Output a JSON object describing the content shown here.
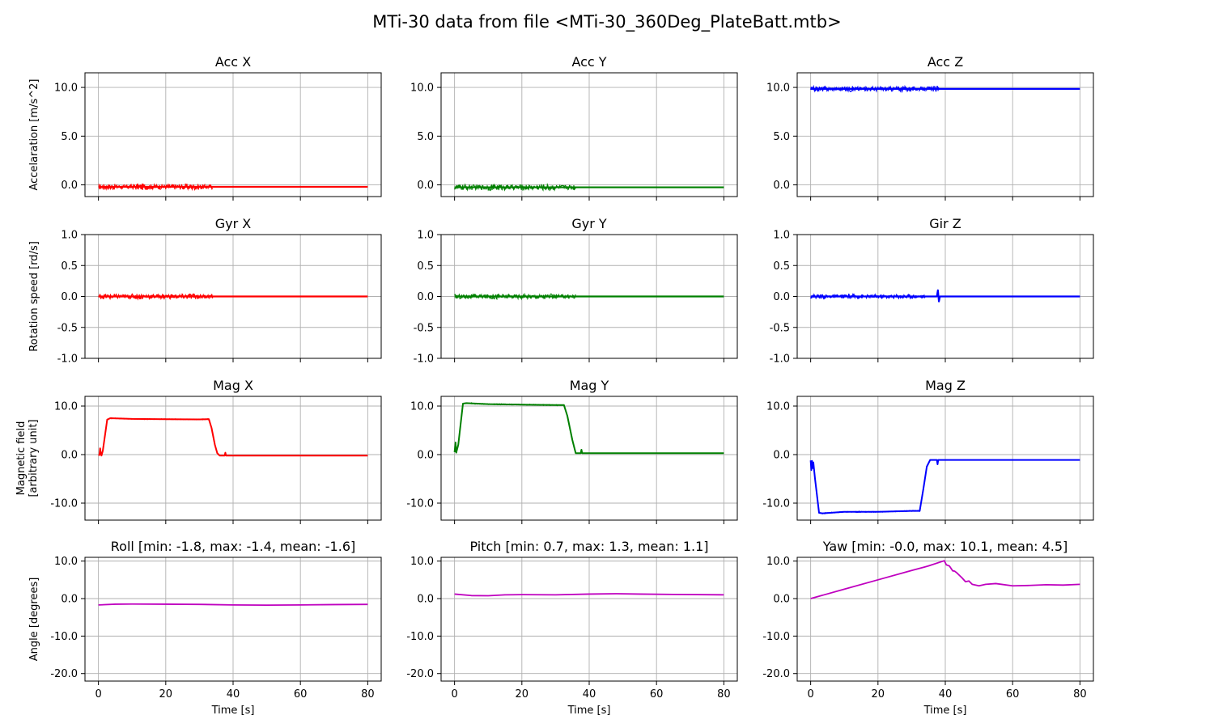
{
  "figure": {
    "title": "MTi-30 data from file <MTi-30_360Deg_PlateBatt.mtb>"
  },
  "chart_data": [
    {
      "id": "acc-x",
      "type": "line",
      "row": 0,
      "col": 0,
      "title": "Acc X",
      "xlabel": "",
      "ylabel": "Accelaration [m/s^2]",
      "xlim": [
        -4,
        84
      ],
      "ylim": [
        -1.2,
        11.5
      ],
      "xticks": [
        0,
        20,
        40,
        60,
        80
      ],
      "xtick_labels": false,
      "yticks": [
        0,
        5,
        10
      ],
      "ytick_labels": [
        "0.0",
        "5.0",
        "10.0"
      ],
      "grid": true,
      "color": "#ff0000",
      "line_width": 2.2,
      "series": [
        {
          "x": [
            0,
            80
          ],
          "y": [
            -0.2,
            -0.2
          ]
        }
      ],
      "noise": [
        {
          "from": 0,
          "to": 34,
          "base": -0.2,
          "amp": 0.35
        }
      ]
    },
    {
      "id": "acc-y",
      "type": "line",
      "row": 0,
      "col": 1,
      "title": "Acc Y",
      "xlabel": "",
      "ylabel": "",
      "xlim": [
        -4,
        84
      ],
      "ylim": [
        -1.2,
        11.5
      ],
      "xticks": [
        0,
        20,
        40,
        60,
        80
      ],
      "xtick_labels": false,
      "yticks": [
        0,
        5,
        10
      ],
      "ytick_labels": [
        "0.0",
        "5.0",
        "10.0"
      ],
      "grid": true,
      "color": "#008000",
      "line_width": 2.2,
      "series": [
        {
          "x": [
            0,
            80
          ],
          "y": [
            -0.25,
            -0.25
          ]
        }
      ],
      "noise": [
        {
          "from": 0,
          "to": 36,
          "base": -0.25,
          "amp": 0.35
        }
      ]
    },
    {
      "id": "acc-z",
      "type": "line",
      "row": 0,
      "col": 2,
      "title": "Acc Z",
      "xlabel": "",
      "ylabel": "",
      "xlim": [
        -4,
        84
      ],
      "ylim": [
        -1.2,
        11.5
      ],
      "xticks": [
        0,
        20,
        40,
        60,
        80
      ],
      "xtick_labels": false,
      "yticks": [
        0,
        5,
        10
      ],
      "ytick_labels": [
        "0.0",
        "5.0",
        "10.0"
      ],
      "grid": true,
      "color": "#0000ff",
      "line_width": 2.2,
      "series": [
        {
          "x": [
            0,
            80
          ],
          "y": [
            9.85,
            9.85
          ]
        }
      ],
      "noise": [
        {
          "from": 0,
          "to": 38,
          "base": 9.85,
          "amp": 0.3
        }
      ]
    },
    {
      "id": "gyr-x",
      "type": "line",
      "row": 1,
      "col": 0,
      "title": "Gyr X",
      "xlabel": "",
      "ylabel": "Rotation speed [rd/s]",
      "xlim": [
        -4,
        84
      ],
      "ylim": [
        -1.0,
        1.0
      ],
      "xticks": [
        0,
        20,
        40,
        60,
        80
      ],
      "xtick_labels": false,
      "yticks": [
        -1,
        -0.5,
        0,
        0.5,
        1
      ],
      "ytick_labels": [
        "-1.0",
        "-0.5",
        "0.0",
        "0.5",
        "1.0"
      ],
      "grid": true,
      "color": "#ff0000",
      "line_width": 2.2,
      "series": [
        {
          "x": [
            0,
            80
          ],
          "y": [
            0.0,
            0.0
          ]
        }
      ],
      "noise": [
        {
          "from": 0,
          "to": 34,
          "base": 0.0,
          "amp": 0.05
        }
      ]
    },
    {
      "id": "gyr-y",
      "type": "line",
      "row": 1,
      "col": 1,
      "title": "Gyr Y",
      "xlabel": "",
      "ylabel": "",
      "xlim": [
        -4,
        84
      ],
      "ylim": [
        -1.0,
        1.0
      ],
      "xticks": [
        0,
        20,
        40,
        60,
        80
      ],
      "xtick_labels": false,
      "yticks": [
        -1,
        -0.5,
        0,
        0.5,
        1
      ],
      "ytick_labels": [
        "-1.0",
        "-0.5",
        "0.0",
        "0.5",
        "1.0"
      ],
      "grid": true,
      "color": "#008000",
      "line_width": 2.2,
      "series": [
        {
          "x": [
            0,
            80
          ],
          "y": [
            0.0,
            0.0
          ]
        }
      ],
      "noise": [
        {
          "from": 0,
          "to": 36,
          "base": 0.0,
          "amp": 0.045
        }
      ]
    },
    {
      "id": "gyr-z",
      "type": "line",
      "row": 1,
      "col": 2,
      "title": "Gir Z",
      "xlabel": "",
      "ylabel": "",
      "xlim": [
        -4,
        84
      ],
      "ylim": [
        -1.0,
        1.0
      ],
      "xticks": [
        0,
        20,
        40,
        60,
        80
      ],
      "xtick_labels": false,
      "yticks": [
        -1,
        -0.5,
        0,
        0.5,
        1
      ],
      "ytick_labels": [
        "-1.0",
        "-0.5",
        "0.0",
        "0.5",
        "1.0"
      ],
      "grid": true,
      "color": "#0000ff",
      "line_width": 2.2,
      "series": [
        {
          "x": [
            0,
            37.5,
            37.8,
            38.1,
            38.4,
            80
          ],
          "y": [
            0.0,
            0.0,
            0.1,
            -0.08,
            0.0,
            0.0
          ]
        }
      ],
      "noise": [
        {
          "from": 0,
          "to": 34,
          "base": 0.0,
          "amp": 0.04
        }
      ]
    },
    {
      "id": "mag-x",
      "type": "line",
      "row": 2,
      "col": 0,
      "title": "Mag X",
      "xlabel": "",
      "ylabel": "Magnetic field\n[arbitrary unit]",
      "xlim": [
        -4,
        84
      ],
      "ylim": [
        -13.5,
        12
      ],
      "xticks": [
        0,
        20,
        40,
        60,
        80
      ],
      "xtick_labels": false,
      "yticks": [
        -10,
        0,
        10
      ],
      "ytick_labels": [
        "-10.0",
        "0.0",
        "10.0"
      ],
      "grid": true,
      "color": "#ff0000",
      "line_width": 2.0,
      "series": [
        {
          "x": [
            0,
            0.3,
            0.5,
            0.7,
            0.9,
            1.3,
            2.6,
            3.5,
            10,
            20,
            30,
            32.8,
            33.6,
            34.6,
            35.3,
            36,
            37.5,
            37.7,
            37.9,
            80
          ],
          "y": [
            0,
            -0.1,
            1.3,
            0.3,
            -0.2,
            0.8,
            7.2,
            7.5,
            7.35,
            7.3,
            7.25,
            7.3,
            5.5,
            2.0,
            0.3,
            -0.2,
            -0.2,
            0.4,
            -0.2,
            -0.2
          ]
        }
      ],
      "noise": [
        {
          "from": 2.6,
          "to": 33,
          "base": 0,
          "amp": 0.1
        }
      ]
    },
    {
      "id": "mag-y",
      "type": "line",
      "row": 2,
      "col": 1,
      "title": "Mag Y",
      "xlabel": "",
      "ylabel": "",
      "xlim": [
        -4,
        84
      ],
      "ylim": [
        -13.5,
        12
      ],
      "xticks": [
        0,
        20,
        40,
        60,
        80
      ],
      "xtick_labels": false,
      "yticks": [
        -10,
        0,
        10
      ],
      "ytick_labels": [
        "-10.0",
        "0.0",
        "10.0"
      ],
      "grid": true,
      "color": "#008000",
      "line_width": 2.0,
      "series": [
        {
          "x": [
            0,
            0.3,
            0.5,
            0.8,
            1.1,
            2.5,
            3.5,
            10,
            20,
            30,
            32.5,
            33.5,
            35,
            36,
            37.5,
            37.7,
            37.9,
            80
          ],
          "y": [
            0.5,
            2.5,
            0.4,
            1.2,
            2.0,
            10.5,
            10.6,
            10.4,
            10.3,
            10.2,
            10.2,
            8.0,
            3.0,
            0.3,
            0.3,
            1.0,
            0.3,
            0.3
          ]
        }
      ],
      "noise": [
        {
          "from": 2.5,
          "to": 33,
          "base": 0,
          "amp": 0.12
        }
      ]
    },
    {
      "id": "mag-z",
      "type": "line",
      "row": 2,
      "col": 2,
      "title": "Mag Z",
      "xlabel": "",
      "ylabel": "",
      "xlim": [
        -4,
        84
      ],
      "ylim": [
        -13.5,
        12
      ],
      "xticks": [
        0,
        20,
        40,
        60,
        80
      ],
      "xtick_labels": false,
      "yticks": [
        -10,
        0,
        10
      ],
      "ytick_labels": [
        "-10.0",
        "0.0",
        "10.0"
      ],
      "grid": true,
      "color": "#0000ff",
      "line_width": 2.0,
      "series": [
        {
          "x": [
            0,
            0.2,
            0.4,
            0.6,
            0.8,
            1.0,
            1.3,
            2.5,
            3.5,
            10,
            20,
            30,
            32.4,
            33.5,
            34.5,
            35.5,
            37.5,
            37.7,
            37.9,
            80
          ],
          "y": [
            -1.2,
            -3.2,
            -1.3,
            -2.8,
            -1.6,
            -3.0,
            -5.0,
            -12.0,
            -12.1,
            -11.8,
            -11.8,
            -11.6,
            -11.6,
            -7.0,
            -2.5,
            -1.1,
            -1.1,
            -2.0,
            -1.1,
            -1.1
          ]
        }
      ],
      "noise": [
        {
          "from": 2.5,
          "to": 32.5,
          "base": 0,
          "amp": 0.12
        }
      ]
    },
    {
      "id": "roll",
      "type": "line",
      "row": 3,
      "col": 0,
      "title": "Roll [min: -1.8, max: -1.4, mean: -1.6]",
      "xlabel": "Time [s]",
      "ylabel": "Angle [degrees]",
      "xlim": [
        -4,
        84
      ],
      "ylim": [
        -22,
        11
      ],
      "xticks": [
        0,
        20,
        40,
        60,
        80
      ],
      "xtick_labels": true,
      "yticks": [
        -20,
        -10,
        0,
        10
      ],
      "ytick_labels": [
        "-20.0",
        "-10.0",
        "0.0",
        "10.0"
      ],
      "grid": true,
      "color": "#bf00bf",
      "line_width": 1.8,
      "series": [
        {
          "x": [
            0,
            5,
            10,
            20,
            30,
            40,
            50,
            60,
            70,
            80
          ],
          "y": [
            -1.7,
            -1.5,
            -1.45,
            -1.5,
            -1.55,
            -1.7,
            -1.75,
            -1.7,
            -1.6,
            -1.55
          ]
        }
      ],
      "noise": []
    },
    {
      "id": "pitch",
      "type": "line",
      "row": 3,
      "col": 1,
      "title": "Pitch [min: 0.7, max: 1.3, mean: 1.1]",
      "xlabel": "Time [s]",
      "ylabel": "",
      "xlim": [
        -4,
        84
      ],
      "ylim": [
        -22,
        11
      ],
      "xticks": [
        0,
        20,
        40,
        60,
        80
      ],
      "xtick_labels": true,
      "yticks": [
        -20,
        -10,
        0,
        10
      ],
      "ytick_labels": [
        "-20.0",
        "-10.0",
        "0.0",
        "10.0"
      ],
      "grid": true,
      "color": "#bf00bf",
      "line_width": 1.8,
      "series": [
        {
          "x": [
            0,
            5,
            10,
            15,
            20,
            30,
            40,
            48,
            55,
            65,
            80
          ],
          "y": [
            1.2,
            0.8,
            0.75,
            1.0,
            1.05,
            1.0,
            1.2,
            1.3,
            1.2,
            1.1,
            1.0
          ]
        }
      ],
      "noise": []
    },
    {
      "id": "yaw",
      "type": "line",
      "row": 3,
      "col": 2,
      "title": "Yaw [min: -0.0, max: 10.1, mean: 4.5]",
      "xlabel": "Time [s]",
      "ylabel": "",
      "xlim": [
        -4,
        84
      ],
      "ylim": [
        -22,
        11
      ],
      "xticks": [
        0,
        20,
        40,
        60,
        80
      ],
      "xtick_labels": true,
      "yticks": [
        -20,
        -10,
        0,
        10
      ],
      "ytick_labels": [
        "-20.0",
        "-10.0",
        "0.0",
        "10.0"
      ],
      "grid": true,
      "color": "#bf00bf",
      "line_width": 1.8,
      "series": [
        {
          "x": [
            0,
            10,
            20,
            30,
            35,
            39.7,
            40.3,
            41.2,
            42.2,
            42.8,
            43.5,
            45,
            46,
            47,
            48,
            50,
            52,
            55,
            60,
            65,
            70,
            75,
            80
          ],
          "y": [
            0,
            2.5,
            5.0,
            7.5,
            8.7,
            10.1,
            9.0,
            8.7,
            7.4,
            7.3,
            6.8,
            5.5,
            4.5,
            4.7,
            3.8,
            3.4,
            3.8,
            4.0,
            3.4,
            3.5,
            3.7,
            3.6,
            3.8
          ]
        }
      ],
      "noise": []
    }
  ]
}
